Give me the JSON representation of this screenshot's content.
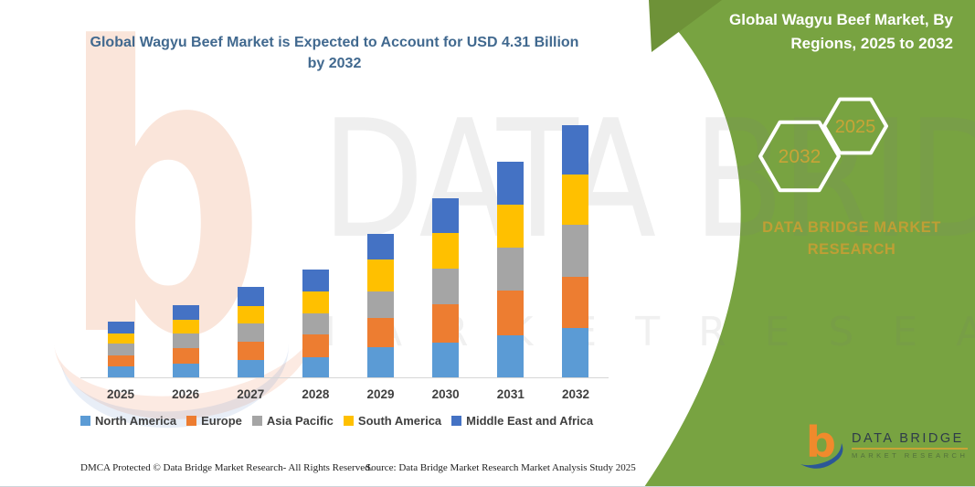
{
  "left_chart": {
    "title": "Global Wagyu Beef Market is Expected to Account for USD 4.31 Billion by 2032",
    "footer_dmca": "DMCA Protected © Data Bridge Market Research-  All Rights Reserved.",
    "footer_source": "Source: Data Bridge Market Research  Market Analysis Study 2025"
  },
  "right_panel": {
    "title": "Global Wagyu Beef Market, By Regions, 2025 to 2032",
    "hexagon_years": [
      "2032",
      "2025"
    ],
    "brand_heading": "DATA BRIDGE MARKET RESEARCH",
    "logo_letter": "b",
    "logo_text": "DATA BRIDGE",
    "logo_subtext": "MARKET RESEARCH",
    "panel_color": "#78A341",
    "panel_wedge_color": "#6E9238",
    "accent_gold": "#C8A437"
  },
  "watermark": {
    "logo_letter": "b",
    "brand": "DATA BRIDGE",
    "market_research": "M A R K E T   R E S E A R C H"
  },
  "chart_data": {
    "type": "bar",
    "stacked": true,
    "title": "Global Wagyu Beef Market is Expected to Account for USD 4.31 Billion by 2032",
    "unit": "USD Billion",
    "x": [
      "2025",
      "2026",
      "2027",
      "2028",
      "2029",
      "2030",
      "2031",
      "2032"
    ],
    "series": [
      {
        "name": "North America",
        "color": "#5B9BD5",
        "values": [
          0.18,
          0.23,
          0.29,
          0.34,
          0.51,
          0.6,
          0.72,
          0.84
        ]
      },
      {
        "name": "Europe",
        "color": "#ED7D31",
        "values": [
          0.19,
          0.27,
          0.32,
          0.39,
          0.5,
          0.66,
          0.76,
          0.88
        ]
      },
      {
        "name": "Asia Pacific",
        "color": "#A5A5A5",
        "values": [
          0.2,
          0.25,
          0.32,
          0.36,
          0.45,
          0.61,
          0.73,
          0.89
        ]
      },
      {
        "name": "South America",
        "color": "#FFC000",
        "values": [
          0.17,
          0.23,
          0.29,
          0.38,
          0.55,
          0.61,
          0.74,
          0.86
        ]
      },
      {
        "name": "Middle East and Africa",
        "color": "#4472C4",
        "values": [
          0.2,
          0.25,
          0.33,
          0.38,
          0.44,
          0.59,
          0.74,
          0.84
        ]
      }
    ],
    "totals": [
      0.94,
      1.23,
      1.55,
      1.85,
      2.45,
      3.07,
      3.69,
      4.31
    ],
    "ylim": [
      0,
      4.5
    ],
    "gridlines": false,
    "y_axis_visible": false,
    "legend_position": "bottom"
  }
}
